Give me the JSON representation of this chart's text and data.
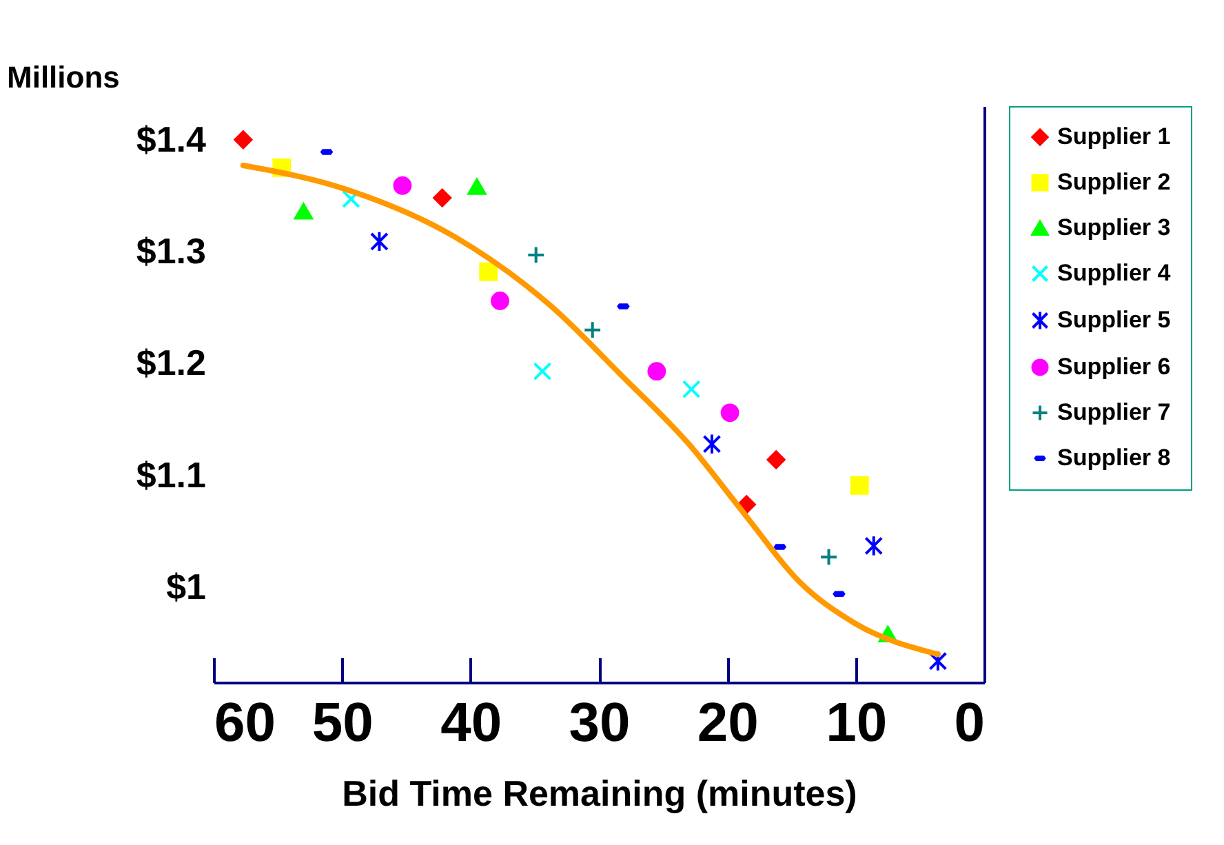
{
  "chart_data": {
    "type": "scatter",
    "xlabel": "Bid Time Remaining (minutes)",
    "ylabel": "Millions",
    "xlim": [
      60,
      0
    ],
    "xticks": [
      60,
      50,
      40,
      30,
      20,
      10,
      0
    ],
    "ylim": [
      0.915,
      1.43
    ],
    "yticks": [
      {
        "value": 1.4,
        "label": "$1.4"
      },
      {
        "value": 1.3,
        "label": "$1.3"
      },
      {
        "value": 1.2,
        "label": "$1.2"
      },
      {
        "value": 1.1,
        "label": "$1.1"
      },
      {
        "value": 1.0,
        "label": "$1"
      }
    ],
    "legend": "right",
    "series": [
      {
        "name": "Supplier 1",
        "color": "#ff0000",
        "x": [
          57.7,
          42.2,
          18.5,
          16.2
        ],
        "values": [
          1.4,
          1.348,
          1.074,
          1.114
        ]
      },
      {
        "name": "Supplier 2",
        "color": "#ffff00",
        "x": [
          54.7,
          38.6,
          9.7
        ],
        "values": [
          1.375,
          1.282,
          1.091
        ]
      },
      {
        "name": "Supplier 3",
        "color": "#00ff00",
        "x": [
          53.0,
          39.5,
          7.5
        ],
        "values": [
          1.336,
          1.358,
          0.958
        ]
      },
      {
        "name": "Supplier 4",
        "color": "#00ffff",
        "x": [
          49.3,
          34.4,
          22.8
        ],
        "values": [
          1.347,
          1.193,
          1.177
        ]
      },
      {
        "name": "Supplier 5",
        "color": "#0000ff",
        "x": [
          47.1,
          21.2,
          8.6,
          3.6
        ],
        "values": [
          1.309,
          1.128,
          1.037,
          0.934
        ]
      },
      {
        "name": "Supplier 6",
        "color": "#ff00ff",
        "x": [
          45.3,
          37.7,
          25.5,
          19.8
        ],
        "values": [
          1.359,
          1.256,
          1.193,
          1.156
        ]
      },
      {
        "name": "Supplier 7",
        "color": "#008080",
        "x": [
          34.9,
          30.5,
          12.1
        ],
        "values": [
          1.297,
          1.23,
          1.027
        ]
      },
      {
        "name": "Supplier 8",
        "color": "#0000ff",
        "x": [
          51.2,
          28.1,
          15.9,
          11.3
        ],
        "values": [
          1.389,
          1.251,
          1.036,
          0.994
        ]
      },
      {
        "type": "line",
        "color": "#ff9900",
        "line_style": "solid",
        "x": [
          57.7,
          49.8,
          41.2,
          33.7,
          28.3,
          23.0,
          18.7,
          14.4,
          10.1,
          3.6
        ],
        "values": [
          1.377,
          1.356,
          1.313,
          1.251,
          1.19,
          1.128,
          1.066,
          1.005,
          0.968,
          0.94
        ]
      }
    ]
  }
}
